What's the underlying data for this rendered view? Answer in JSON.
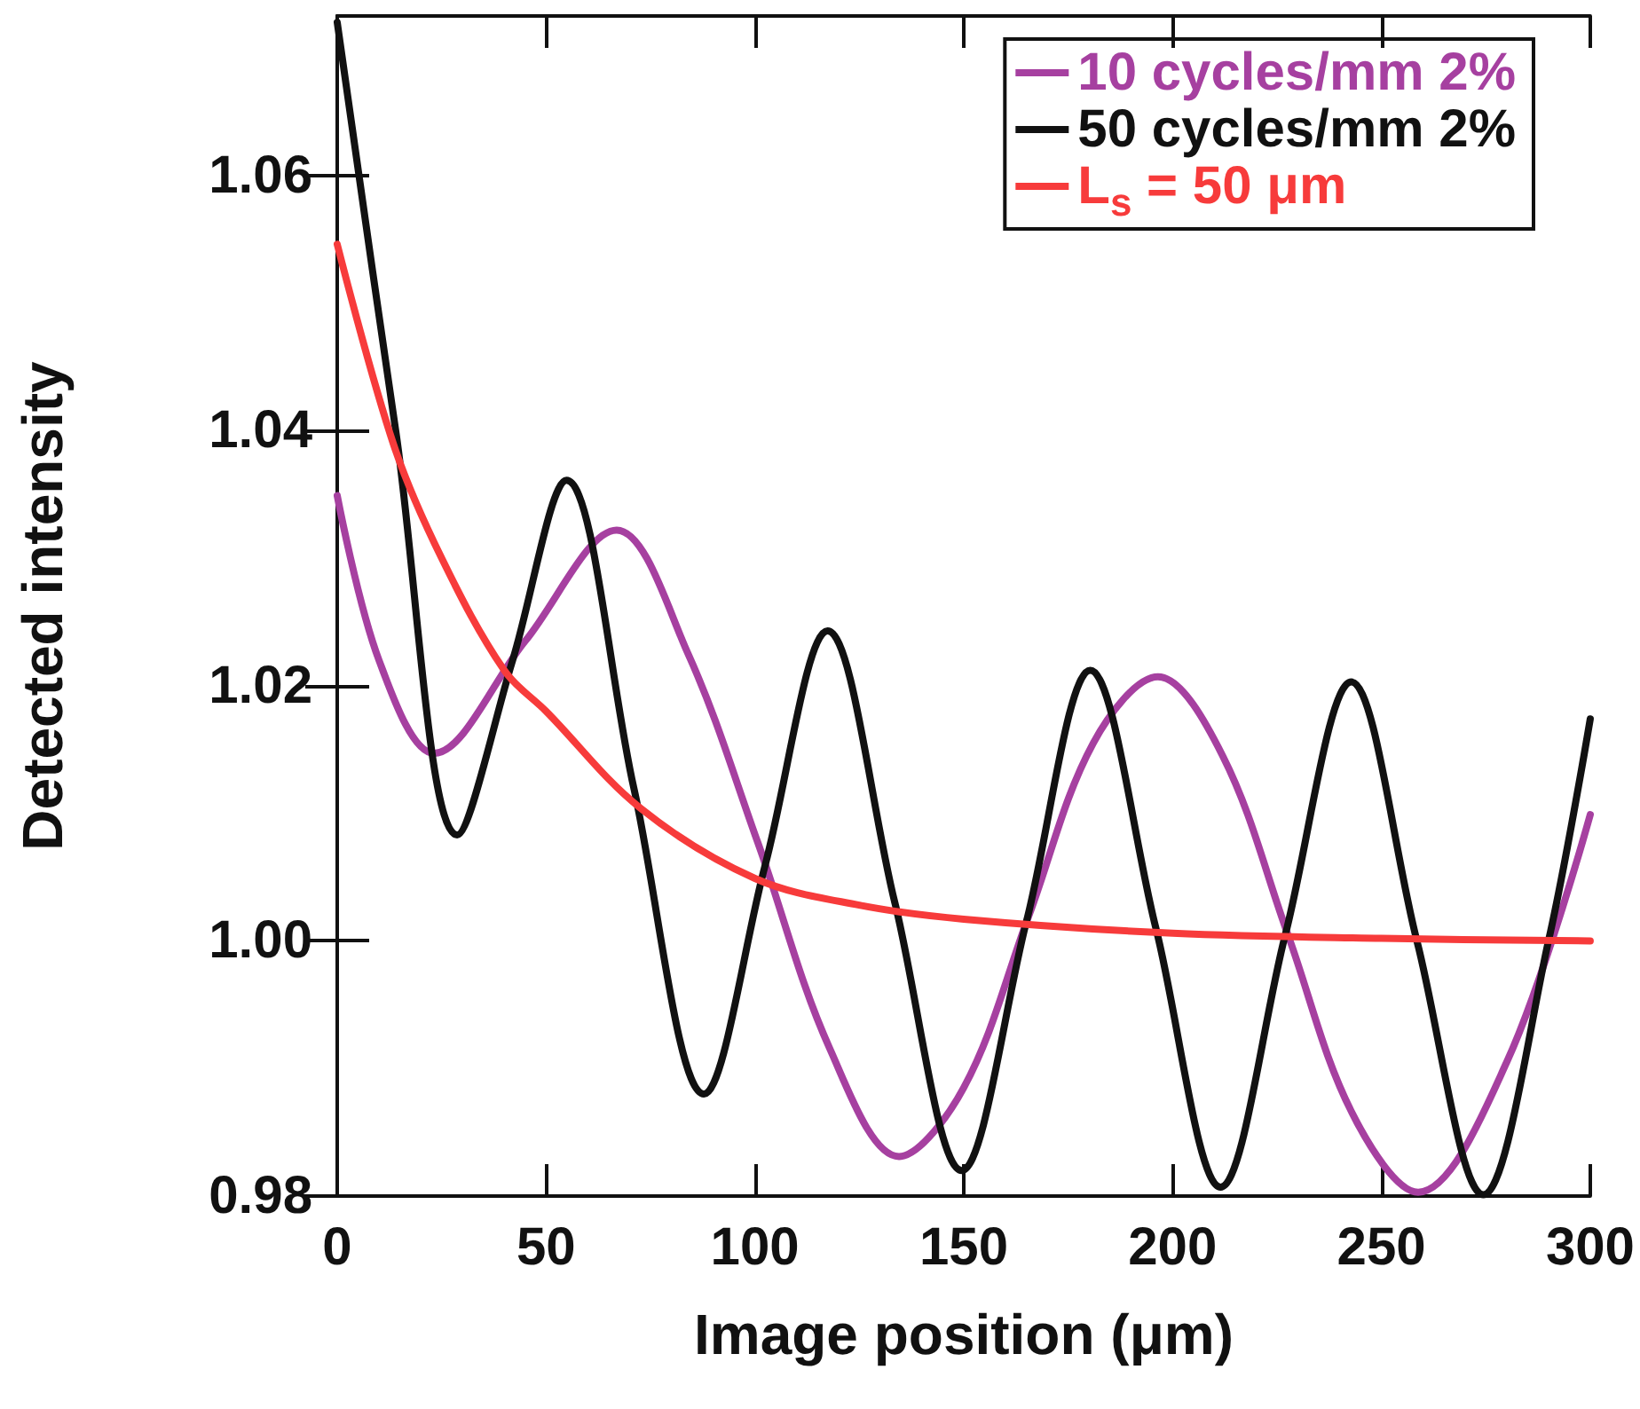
{
  "chart_data": {
    "type": "line",
    "xlabel": "Image position (μm)",
    "ylabel": "Detected intensity",
    "xlim": [
      0,
      300
    ],
    "xticks": [
      0,
      50,
      100,
      150,
      200,
      250,
      300
    ],
    "ylim": [
      0.98,
      1.0725
    ],
    "yticks": [
      {
        "value": 0.98,
        "label": "0.98"
      },
      {
        "value": 1.0,
        "label": "1.00"
      },
      {
        "value": 1.02,
        "label": "1.02"
      },
      {
        "value": 1.04,
        "label": "1.04"
      },
      {
        "value": 1.06,
        "label": "1.06"
      }
    ],
    "grid": false,
    "legend": "top right",
    "marker": "none",
    "line_style": "solid",
    "series": [
      {
        "name": "10 cycles/mm 2%",
        "color": "#a640a0",
        "x": [
          0,
          10,
          23.2,
          45,
          66.9,
          84,
          100.7,
          118,
          134.5,
          150,
          165.5,
          181,
          196.5,
          212,
          227.6,
          243,
          258.8,
          280,
          300
        ],
        "values": [
          1.0349,
          1.022,
          1.0147,
          1.0235,
          1.0322,
          1.0225,
          1.0077,
          0.9915,
          0.9831,
          0.9885,
          1.0019,
          1.0155,
          1.0207,
          1.0145,
          1.0005,
          0.9865,
          0.9803,
          0.9905,
          1.0099
        ]
      },
      {
        "name": "50 cycles/mm 2%",
        "color": "#111111",
        "x": [
          0,
          14,
          28.7,
          42,
          54.9,
          71,
          87.8,
          102.5,
          117.4,
          133.5,
          149.5,
          165,
          180.3,
          196,
          211.5,
          227,
          242.8,
          258.5,
          274.4,
          290,
          300
        ],
        "values": [
          1.072,
          1.04,
          1.0083,
          1.022,
          1.0361,
          1.012,
          0.988,
          1.006,
          1.0243,
          1.003,
          0.982,
          1.0015,
          1.0212,
          1.001,
          0.9807,
          1.0005,
          1.0203,
          1.0,
          0.9801,
          1.0,
          1.0174
        ]
      },
      {
        "name": "L$_{s}$ = 50 μm",
        "color": "#f73b3b",
        "x": [
          0,
          13.5,
          25,
          40,
          50,
          72.6,
          100,
          125,
          150,
          200,
          250,
          300
        ],
        "values": [
          1.0546,
          1.0389,
          1.03,
          1.0212,
          1.018,
          1.0104,
          1.0049,
          1.0028,
          1.0017,
          1.0006,
          1.0002,
          1.0
        ]
      }
    ]
  }
}
